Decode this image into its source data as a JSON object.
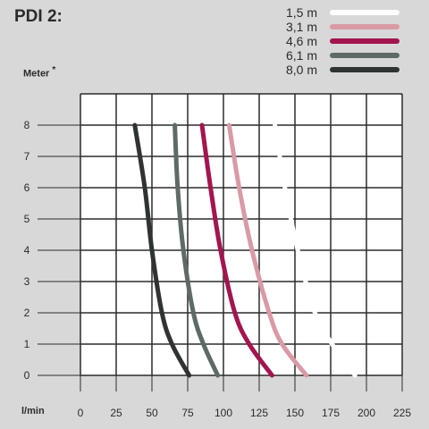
{
  "title": "PDI 2:",
  "chart_data": {
    "type": "line",
    "ylabel": "Meter",
    "ylabel_mark": "*",
    "xlabel": "l/min",
    "xlim": [
      0,
      225
    ],
    "ylim": [
      0,
      9
    ],
    "x_ticks": [
      "0",
      "25",
      "50",
      "75",
      "100",
      "125",
      "150",
      "175",
      "200",
      "225"
    ],
    "y_ticks": [
      "0",
      "1",
      "2",
      "3",
      "4",
      "5",
      "6",
      "7",
      "8"
    ],
    "grid": true,
    "legend_position": "top-right",
    "series": [
      {
        "name": "1,5 m",
        "color": "#ffffff",
        "points": [
          [
            136,
            8
          ],
          [
            143,
            6
          ],
          [
            152,
            4
          ],
          [
            164,
            2
          ],
          [
            176,
            1
          ],
          [
            192,
            0
          ]
        ]
      },
      {
        "name": "3,1 m",
        "color": "#d99aa6",
        "points": [
          [
            104,
            8
          ],
          [
            111,
            6
          ],
          [
            120,
            4
          ],
          [
            132,
            2
          ],
          [
            141,
            1
          ],
          [
            158,
            0
          ]
        ]
      },
      {
        "name": "4,6 m",
        "color": "#a3154f",
        "points": [
          [
            85,
            8
          ],
          [
            91,
            6
          ],
          [
            98,
            4
          ],
          [
            108,
            2
          ],
          [
            118,
            1
          ],
          [
            134,
            0
          ]
        ]
      },
      {
        "name": "6,1 m",
        "color": "#5e6a66",
        "points": [
          [
            66,
            8
          ],
          [
            68,
            6
          ],
          [
            72,
            4
          ],
          [
            79,
            2
          ],
          [
            86,
            1
          ],
          [
            96,
            0
          ]
        ]
      },
      {
        "name": "8,0 m",
        "color": "#2f3433",
        "points": [
          [
            38,
            8
          ],
          [
            45,
            6
          ],
          [
            50,
            4
          ],
          [
            57,
            2
          ],
          [
            64,
            1
          ],
          [
            76,
            0
          ]
        ]
      }
    ]
  }
}
